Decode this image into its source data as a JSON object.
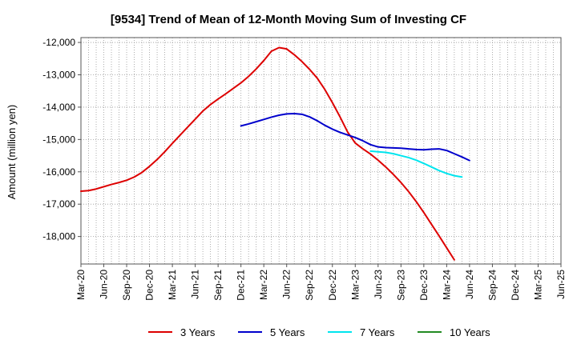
{
  "chart_data": {
    "type": "line",
    "title": "[9534]  Trend of Mean of 12-Month Moving Sum of Investing CF",
    "xlabel": "",
    "ylabel": "Amount (million yen)",
    "ylim": [
      -18850,
      -11850
    ],
    "yticks": [
      -12000,
      -13000,
      -14000,
      -15000,
      -16000,
      -17000,
      -18000
    ],
    "ytick_labels": [
      "-12,000",
      "-13,000",
      "-14,000",
      "-15,000",
      "-16,000",
      "-17,000",
      "-18,000"
    ],
    "xlim": [
      0,
      63
    ],
    "xtick_positions": [
      0,
      3,
      6,
      9,
      12,
      15,
      18,
      21,
      24,
      27,
      30,
      33,
      36,
      39,
      42,
      45,
      48,
      51,
      54,
      57,
      60,
      63
    ],
    "xtick_labels": [
      "Mar-20",
      "Jun-20",
      "Sep-20",
      "Dec-20",
      "Mar-21",
      "Jun-21",
      "Sep-21",
      "Dec-21",
      "Mar-22",
      "Jun-22",
      "Sep-22",
      "Dec-22",
      "Mar-23",
      "Jun-23",
      "Sep-23",
      "Dec-23",
      "Mar-24",
      "Jun-24",
      "Sep-24",
      "Dec-24",
      "Mar-25",
      "Jun-25"
    ],
    "grid": true,
    "legend_position": "bottom",
    "series": [
      {
        "name": "3 Years",
        "color": "#dd0000",
        "points": [
          [
            0,
            -16600
          ],
          [
            1,
            -16580
          ],
          [
            2,
            -16530
          ],
          [
            3,
            -16460
          ],
          [
            4,
            -16390
          ],
          [
            5,
            -16330
          ],
          [
            6,
            -16260
          ],
          [
            7,
            -16160
          ],
          [
            8,
            -16020
          ],
          [
            9,
            -15830
          ],
          [
            10,
            -15620
          ],
          [
            11,
            -15380
          ],
          [
            12,
            -15120
          ],
          [
            13,
            -14870
          ],
          [
            14,
            -14620
          ],
          [
            15,
            -14370
          ],
          [
            16,
            -14120
          ],
          [
            17,
            -13920
          ],
          [
            18,
            -13750
          ],
          [
            19,
            -13590
          ],
          [
            20,
            -13420
          ],
          [
            21,
            -13250
          ],
          [
            22,
            -13050
          ],
          [
            23,
            -12820
          ],
          [
            24,
            -12560
          ],
          [
            25,
            -12270
          ],
          [
            26,
            -12160
          ],
          [
            27,
            -12200
          ],
          [
            28,
            -12380
          ],
          [
            29,
            -12590
          ],
          [
            30,
            -12830
          ],
          [
            31,
            -13100
          ],
          [
            32,
            -13450
          ],
          [
            33,
            -13860
          ],
          [
            34,
            -14300
          ],
          [
            35,
            -14770
          ],
          [
            36,
            -15110
          ],
          [
            37,
            -15290
          ],
          [
            38,
            -15450
          ],
          [
            39,
            -15640
          ],
          [
            40,
            -15850
          ],
          [
            41,
            -16080
          ],
          [
            42,
            -16330
          ],
          [
            43,
            -16610
          ],
          [
            44,
            -16920
          ],
          [
            45,
            -17260
          ],
          [
            46,
            -17620
          ],
          [
            47,
            -17980
          ],
          [
            48,
            -18350
          ],
          [
            49,
            -18720
          ]
        ]
      },
      {
        "name": "5 Years",
        "color": "#0000cc",
        "points": [
          [
            21,
            -14580
          ],
          [
            22,
            -14520
          ],
          [
            23,
            -14450
          ],
          [
            24,
            -14380
          ],
          [
            25,
            -14310
          ],
          [
            26,
            -14250
          ],
          [
            27,
            -14210
          ],
          [
            28,
            -14200
          ],
          [
            29,
            -14220
          ],
          [
            30,
            -14300
          ],
          [
            31,
            -14420
          ],
          [
            32,
            -14560
          ],
          [
            33,
            -14680
          ],
          [
            34,
            -14780
          ],
          [
            35,
            -14860
          ],
          [
            36,
            -14940
          ],
          [
            37,
            -15040
          ],
          [
            38,
            -15160
          ],
          [
            39,
            -15230
          ],
          [
            40,
            -15250
          ],
          [
            41,
            -15260
          ],
          [
            42,
            -15270
          ],
          [
            43,
            -15290
          ],
          [
            44,
            -15310
          ],
          [
            45,
            -15320
          ],
          [
            46,
            -15300
          ],
          [
            47,
            -15290
          ],
          [
            48,
            -15340
          ],
          [
            49,
            -15440
          ],
          [
            50,
            -15540
          ],
          [
            51,
            -15650
          ]
        ]
      },
      {
        "name": "7 Years",
        "color": "#00e5ee",
        "points": [
          [
            38,
            -15360
          ],
          [
            39,
            -15380
          ],
          [
            40,
            -15400
          ],
          [
            41,
            -15440
          ],
          [
            42,
            -15500
          ],
          [
            43,
            -15560
          ],
          [
            44,
            -15640
          ],
          [
            45,
            -15740
          ],
          [
            46,
            -15850
          ],
          [
            47,
            -15960
          ],
          [
            48,
            -16050
          ],
          [
            49,
            -16120
          ],
          [
            50,
            -16160
          ]
        ]
      },
      {
        "name": "10 Years",
        "color": "#228b22",
        "points": []
      }
    ]
  }
}
